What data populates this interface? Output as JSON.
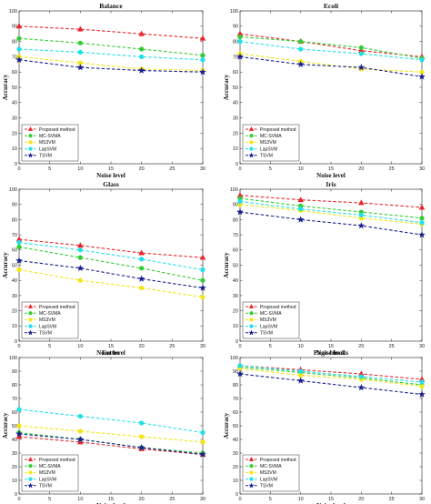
{
  "colors": {
    "proposed": "#e8262c",
    "mcsvma": "#33cc33",
    "ms3vm": "#f2e614",
    "lapsvm": "#22e0e8",
    "tsvm": "#1a2090"
  },
  "legend_markers": [
    "triangle",
    "circle",
    "circle",
    "circle",
    "star"
  ],
  "chart_data": [
    {
      "type": "line",
      "title": "Balance",
      "xlabel": "Noise level",
      "ylabel": "Accuracy",
      "x": [
        0,
        10,
        20,
        30
      ],
      "xlim": [
        0,
        30
      ],
      "ylim": [
        0,
        100
      ],
      "xticks": [
        "0",
        "5",
        "10",
        "15",
        "20",
        "25",
        "30"
      ],
      "yticks": [
        "0",
        "10",
        "20",
        "30",
        "40",
        "50",
        "60",
        "70",
        "80",
        "90",
        "100"
      ],
      "legend_position": "bottom-left",
      "series": [
        {
          "name": "Proposed method",
          "values": [
            90,
            88,
            85,
            82
          ]
        },
        {
          "name": "MC-SVMA",
          "values": [
            82,
            79,
            75,
            71
          ]
        },
        {
          "name": "MS3VM",
          "values": [
            70,
            66,
            62,
            61
          ]
        },
        {
          "name": "LapSVM",
          "values": [
            75,
            73,
            70,
            68
          ]
        },
        {
          "name": "TSVM",
          "values": [
            68,
            63,
            61,
            60
          ]
        }
      ]
    },
    {
      "type": "line",
      "title": "Ecoli",
      "xlabel": "Noise level",
      "ylabel": "Accuracy",
      "x": [
        0,
        10,
        20,
        30
      ],
      "xlim": [
        0,
        30
      ],
      "ylim": [
        0,
        100
      ],
      "xticks": [
        "0",
        "5",
        "10",
        "15",
        "20",
        "25",
        "30"
      ],
      "yticks": [
        "0",
        "10",
        "20",
        "30",
        "40",
        "50",
        "60",
        "70",
        "80",
        "90",
        "100"
      ],
      "legend_position": "bottom-left",
      "series": [
        {
          "name": "Proposed method",
          "values": [
            85,
            80,
            74,
            70
          ]
        },
        {
          "name": "MC-SVMA",
          "values": [
            83,
            80,
            76,
            69
          ]
        },
        {
          "name": "MS3VM",
          "values": [
            72,
            67,
            62,
            60
          ]
        },
        {
          "name": "LapSVM",
          "values": [
            80,
            75,
            72,
            68
          ]
        },
        {
          "name": "TSVM",
          "values": [
            70,
            65,
            63,
            57
          ]
        }
      ]
    },
    {
      "type": "line",
      "title": "Glass",
      "xlabel": "Noise level",
      "ylabel": "Accuracy",
      "x": [
        0,
        10,
        20,
        30
      ],
      "xlim": [
        0,
        30
      ],
      "ylim": [
        0,
        100
      ],
      "xticks": [
        "0",
        "5",
        "10",
        "15",
        "20",
        "25",
        "30"
      ],
      "yticks": [
        "0",
        "10",
        "20",
        "30",
        "40",
        "50",
        "60",
        "70",
        "80",
        "90",
        "100"
      ],
      "legend_position": "bottom-left",
      "series": [
        {
          "name": "Proposed method",
          "values": [
            67,
            63,
            58,
            55
          ]
        },
        {
          "name": "MC-SVMA",
          "values": [
            62,
            55,
            48,
            40
          ]
        },
        {
          "name": "MS3VM",
          "values": [
            47,
            40,
            35,
            29
          ]
        },
        {
          "name": "LapSVM",
          "values": [
            65,
            60,
            54,
            47
          ]
        },
        {
          "name": "TSVM",
          "values": [
            53,
            48,
            41,
            35
          ]
        }
      ]
    },
    {
      "type": "line",
      "title": "Iris",
      "xlabel": "Noise level",
      "ylabel": "Accuracy",
      "x": [
        0,
        10,
        20,
        30
      ],
      "xlim": [
        0,
        30
      ],
      "ylim": [
        0,
        100
      ],
      "xticks": [
        "0",
        "5",
        "10",
        "15",
        "20",
        "25",
        "30"
      ],
      "yticks": [
        "0",
        "10",
        "20",
        "30",
        "40",
        "50",
        "60",
        "70",
        "80",
        "90",
        "100"
      ],
      "legend_position": "bottom-left",
      "series": [
        {
          "name": "Proposed method",
          "values": [
            96,
            93,
            91,
            88
          ]
        },
        {
          "name": "MC-SVMA",
          "values": [
            94,
            89,
            85,
            81
          ]
        },
        {
          "name": "MS3VM",
          "values": [
            90,
            86,
            81,
            77
          ]
        },
        {
          "name": "LapSVM",
          "values": [
            92,
            87,
            83,
            78
          ]
        },
        {
          "name": "TSVM",
          "values": [
            85,
            80,
            76,
            70
          ]
        }
      ]
    },
    {
      "type": "line",
      "title": "Letter",
      "xlabel": "Noise level",
      "ylabel": "Accuracy",
      "x": [
        0,
        10,
        20,
        30
      ],
      "xlim": [
        0,
        30
      ],
      "ylim": [
        0,
        100
      ],
      "xticks": [
        "0",
        "5",
        "10",
        "15",
        "20",
        "25",
        "30"
      ],
      "yticks": [
        "0",
        "10",
        "20",
        "30",
        "40",
        "50",
        "60",
        "70",
        "80",
        "90",
        "100"
      ],
      "legend_position": "bottom-left",
      "series": [
        {
          "name": "Proposed method",
          "values": [
            42,
            38,
            33,
            29
          ]
        },
        {
          "name": "MC-SVMA",
          "values": [
            45,
            40,
            34,
            30
          ]
        },
        {
          "name": "MS3VM",
          "values": [
            50,
            46,
            42,
            38
          ]
        },
        {
          "name": "LapSVM",
          "values": [
            62,
            57,
            52,
            45
          ]
        },
        {
          "name": "TSVM",
          "values": [
            44,
            40,
            34,
            29
          ]
        }
      ]
    },
    {
      "type": "line",
      "title": "Page-blocks",
      "xlabel": "Noise level",
      "ylabel": "Accuracy",
      "x": [
        0,
        10,
        20,
        30
      ],
      "xlim": [
        0,
        30
      ],
      "ylim": [
        0,
        100
      ],
      "xticks": [
        "0",
        "5",
        "10",
        "15",
        "20",
        "25",
        "30"
      ],
      "yticks": [
        "0",
        "10",
        "20",
        "30",
        "40",
        "50",
        "60",
        "70",
        "80",
        "90",
        "100"
      ],
      "legend_position": "bottom-left",
      "series": [
        {
          "name": "Proposed method",
          "values": [
            94,
            91,
            88,
            84
          ]
        },
        {
          "name": "MC-SVMA",
          "values": [
            93,
            89,
            85,
            80
          ]
        },
        {
          "name": "MS3VM",
          "values": [
            92,
            87,
            84,
            79
          ]
        },
        {
          "name": "LapSVM",
          "values": [
            94,
            90,
            86,
            82
          ]
        },
        {
          "name": "TSVM",
          "values": [
            88,
            83,
            78,
            73
          ]
        }
      ]
    }
  ]
}
